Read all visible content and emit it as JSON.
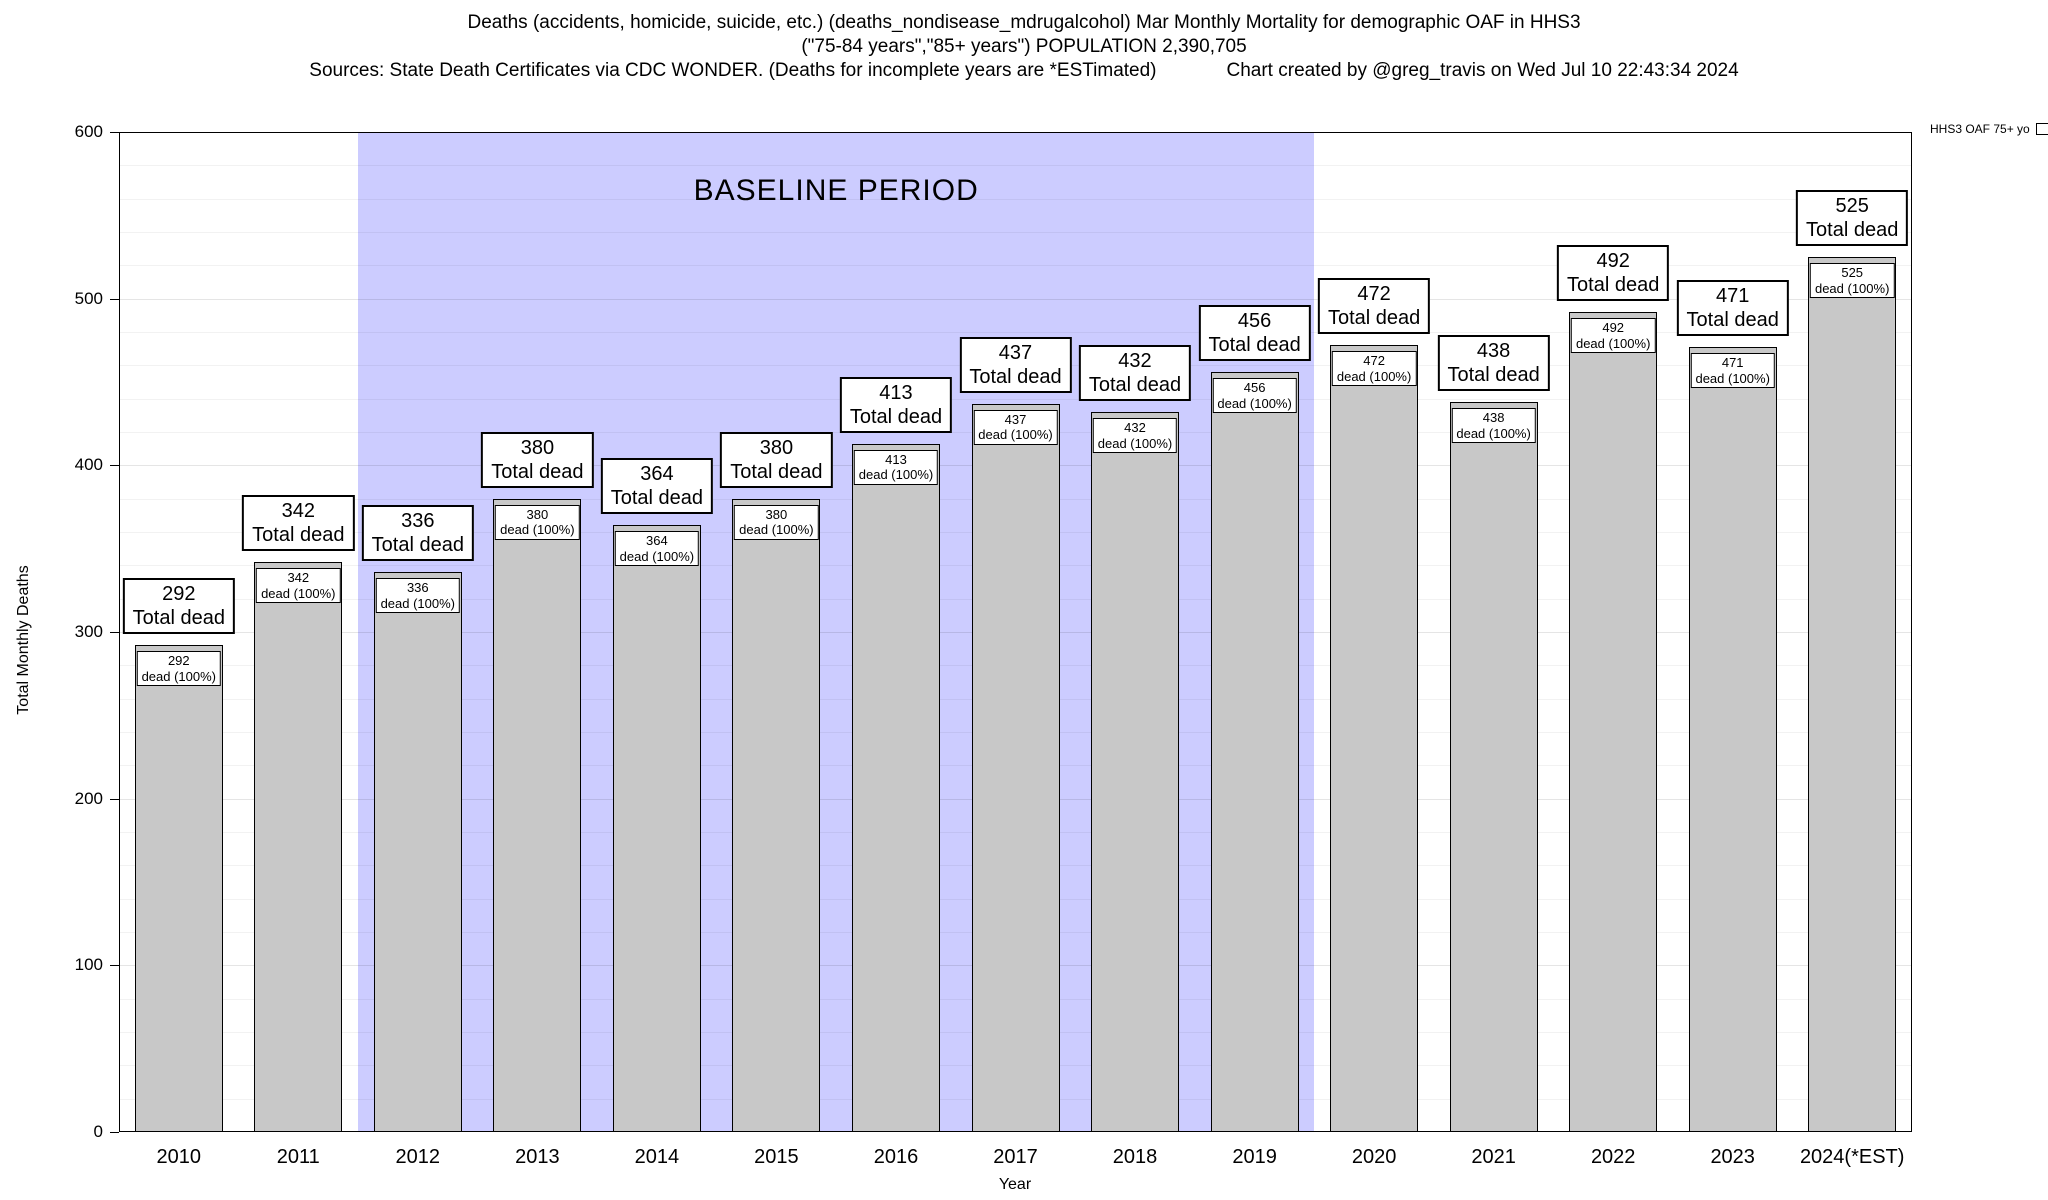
{
  "header": {
    "title_line1": "Deaths (accidents, homicide, suicide, etc.) (deaths_nondisease_mdrugalcohol) Mar Monthly Mortality for demographic OAF in HHS3",
    "title_line2": "(\"75-84 years\",\"85+ years\") POPULATION 2,390,705",
    "sources": "Sources: State Death Certificates via CDC WONDER. (Deaths for incomplete years are *ESTimated)",
    "credit": "Chart created by @greg_travis on Wed Jul 10 22:43:34 2024"
  },
  "legend": {
    "label": "HHS3 OAF 75+ yo",
    "swatch_color": "#c8c8c8",
    "position": "top-right"
  },
  "chart_data": {
    "type": "bar",
    "title": "Deaths (accidents, homicide, suicide, etc.) (deaths_nondisease_mdrugalcohol) Mar Monthly Mortality for demographic OAF in HHS3",
    "subtitle": "(\"75-84 years\",\"85+ years\") POPULATION 2,390,705",
    "categories": [
      "2010",
      "2011",
      "2012",
      "2013",
      "2014",
      "2015",
      "2016",
      "2017",
      "2018",
      "2019",
      "2020",
      "2021",
      "2022",
      "2023",
      "2024(*EST)"
    ],
    "values": [
      292,
      342,
      336,
      380,
      364,
      380,
      413,
      437,
      432,
      456,
      472,
      438,
      492,
      471,
      525
    ],
    "bar_label": "Total dead",
    "bar_sublabel": "dead (100%)",
    "xlabel": "Year",
    "ylabel": "Total Monthly Deaths",
    "ylim": [
      0,
      600
    ],
    "yticks": [
      0,
      100,
      200,
      300,
      400,
      500,
      600
    ],
    "grid": true,
    "bar_color": "#c8c8c8",
    "baseline_region": {
      "label": "BASELINE PERIOD",
      "start_category": "2012",
      "end_category": "2019",
      "color": "#ccccff"
    }
  }
}
